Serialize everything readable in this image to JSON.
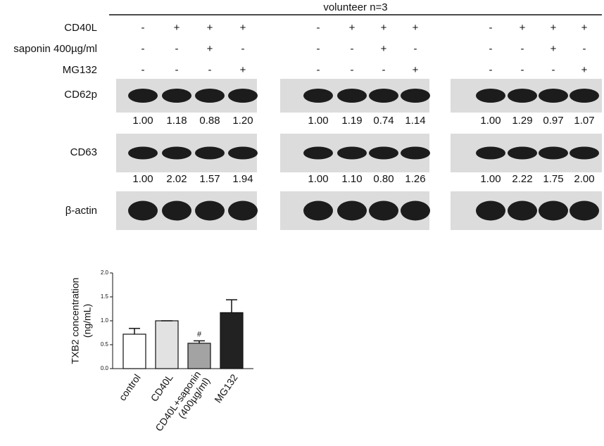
{
  "blot": {
    "header": "volunteer n=3",
    "row_labels": [
      "CD40L",
      "saponin 400µg/ml",
      "MG132"
    ],
    "blot_labels": [
      "CD62p",
      "CD63",
      "β-actin"
    ],
    "panels": [
      {
        "signs": [
          [
            "-",
            "+",
            "+",
            "+"
          ],
          [
            "-",
            "-",
            "+",
            "-"
          ],
          [
            "-",
            "-",
            "-",
            "+"
          ]
        ],
        "quant": [
          [
            "1.00",
            "1.18",
            "0.88",
            "1.20"
          ],
          [
            "1.00",
            "2.02",
            "1.57",
            "1.94"
          ]
        ]
      },
      {
        "signs": [
          [
            "-",
            "+",
            "+",
            "+"
          ],
          [
            "-",
            "-",
            "+",
            "-"
          ],
          [
            "-",
            "-",
            "-",
            "+"
          ]
        ],
        "quant": [
          [
            "1.00",
            "1.19",
            "0.74",
            "1.14"
          ],
          [
            "1.00",
            "1.10",
            "0.80",
            "1.26"
          ]
        ]
      },
      {
        "signs": [
          [
            "-",
            "+",
            "+",
            "+"
          ],
          [
            "-",
            "-",
            "+",
            "-"
          ],
          [
            "-",
            "-",
            "-",
            "+"
          ]
        ],
        "quant": [
          [
            "1.00",
            "1.29",
            "0.97",
            "1.07"
          ],
          [
            "1.00",
            "2.22",
            "1.75",
            "2.00"
          ]
        ]
      }
    ]
  },
  "chart_data": {
    "type": "bar",
    "y_label": [
      "TXB2 concentration",
      "(ng/mL)"
    ],
    "categories": [
      "control",
      "CD40L",
      "CD40L+saponin\n(400µg/ml)",
      "MG132"
    ],
    "values": [
      0.72,
      1.0,
      0.53,
      1.17
    ],
    "errors": [
      0.12,
      0,
      0.05,
      0.27
    ],
    "colors": [
      "#ffffff",
      "#e2e2e2",
      "#a3a3a3",
      "#222222"
    ],
    "markers": [
      null,
      null,
      "#",
      null
    ],
    "ylim": [
      0,
      2
    ],
    "yticks": [
      {
        "value": 0,
        "label": "0.0"
      },
      {
        "value": 0.5,
        "label": "0.5"
      },
      {
        "value": 1,
        "label": "1.0"
      },
      {
        "value": 1.5,
        "label": "1.5"
      },
      {
        "value": 2,
        "label": "2.0"
      }
    ]
  }
}
